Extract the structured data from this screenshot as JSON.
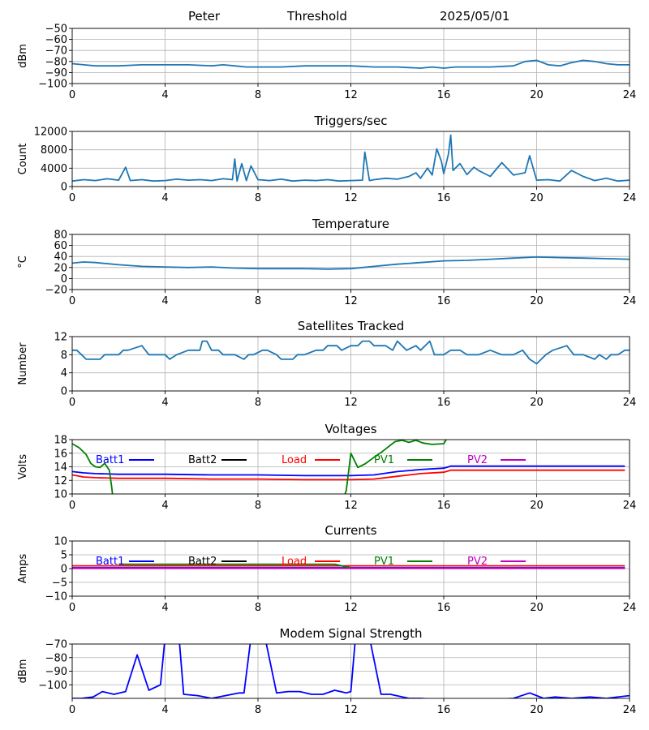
{
  "header": {
    "station": "Peter",
    "mode": "Threshold",
    "date": "2025/05/01"
  },
  "colors": {
    "default_line": "#1f77b4",
    "batt1": "#0000ff",
    "batt2": "#000000",
    "load": "#ff0000",
    "pv1": "#008000",
    "pv2": "#bf00bf",
    "grid": "#b0b0b0"
  },
  "chart_data": [
    {
      "type": "line",
      "title": "",
      "ylabel": "dBm",
      "xlim": [
        0,
        24
      ],
      "ylim": [
        -100,
        -50
      ],
      "xticks": [
        0,
        4,
        8,
        12,
        16,
        20,
        24
      ],
      "yticks": [
        -100,
        -90,
        -80,
        -70,
        -60,
        -50
      ],
      "grid": true,
      "series": [
        {
          "color": "#1f77b4",
          "x": [
            0,
            0.5,
            1,
            2,
            3,
            4,
            5,
            6,
            6.5,
            7,
            7.5,
            8,
            9,
            10,
            11,
            12,
            13,
            14,
            15,
            15.5,
            16,
            16.5,
            17,
            18,
            19,
            19.5,
            20,
            20.5,
            21,
            21.5,
            22,
            22.5,
            23,
            23.5,
            24
          ],
          "y": [
            -82,
            -83,
            -84,
            -84,
            -83,
            -83,
            -83,
            -84,
            -83,
            -84,
            -85,
            -85,
            -85,
            -84,
            -84,
            -84,
            -85,
            -85,
            -86,
            -85,
            -86,
            -85,
            -85,
            -85,
            -84,
            -80,
            -79,
            -83,
            -84,
            -81,
            -79,
            -80,
            -82,
            -83,
            -83
          ]
        }
      ]
    },
    {
      "type": "line",
      "title": "Triggers/sec",
      "ylabel": "Count",
      "xlim": [
        0,
        24
      ],
      "ylim": [
        0,
        12000
      ],
      "xticks": [
        0,
        4,
        8,
        12,
        16,
        20,
        24
      ],
      "yticks": [
        0,
        4000,
        8000,
        12000
      ],
      "grid": true,
      "series": [
        {
          "color": "#1f77b4",
          "x": [
            0,
            0.5,
            1,
            1.5,
            2,
            2.3,
            2.5,
            3,
            3.5,
            4,
            4.5,
            5,
            5.5,
            6,
            6.5,
            6.9,
            7,
            7.1,
            7.3,
            7.5,
            7.7,
            8,
            8.5,
            9,
            9.5,
            10,
            10.5,
            11,
            11.5,
            12,
            12.5,
            12.6,
            12.8,
            13,
            13.5,
            14,
            14.5,
            14.8,
            15,
            15.3,
            15.5,
            15.7,
            15.9,
            16,
            16.2,
            16.3,
            16.4,
            16.7,
            17,
            17.3,
            17.5,
            18,
            18.5,
            19,
            19.5,
            19.7,
            20,
            20.5,
            21,
            21.5,
            22,
            22.5,
            23,
            23.5,
            24
          ],
          "y": [
            1200,
            1500,
            1300,
            1700,
            1400,
            4200,
            1300,
            1500,
            1200,
            1300,
            1600,
            1400,
            1500,
            1300,
            1700,
            1500,
            6000,
            1200,
            5000,
            1300,
            4500,
            1500,
            1300,
            1600,
            1200,
            1400,
            1300,
            1500,
            1200,
            1300,
            1400,
            7500,
            1300,
            1500,
            1800,
            1600,
            2200,
            3000,
            1800,
            4000,
            2500,
            8200,
            5500,
            2800,
            7000,
            11200,
            3500,
            5000,
            2600,
            4200,
            3500,
            2200,
            5200,
            2500,
            3000,
            6700,
            1400,
            1500,
            1200,
            3500,
            2200,
            1300,
            1800,
            1200,
            1400
          ]
        }
      ]
    },
    {
      "type": "line",
      "title": "Temperature",
      "ylabel": "°C",
      "xlim": [
        0,
        24
      ],
      "ylim": [
        -20,
        80
      ],
      "xticks": [
        0,
        4,
        8,
        12,
        16,
        20,
        24
      ],
      "yticks": [
        -20,
        0,
        20,
        40,
        60,
        80
      ],
      "grid": true,
      "series": [
        {
          "color": "#1f77b4",
          "x": [
            0,
            0.5,
            1,
            2,
            3,
            4,
            5,
            6,
            7,
            8,
            9,
            10,
            11,
            12,
            12.5,
            13,
            14,
            15,
            16,
            17,
            18,
            19,
            20,
            21,
            22,
            23,
            24
          ],
          "y": [
            28,
            30,
            29,
            25,
            22,
            21,
            20,
            21,
            19,
            18,
            18,
            18,
            17,
            18,
            20,
            22,
            26,
            29,
            32,
            33,
            35,
            37,
            39,
            38,
            37,
            36,
            35
          ]
        }
      ]
    },
    {
      "type": "line",
      "title": "Satellites Tracked",
      "ylabel": "Number",
      "xlim": [
        0,
        24
      ],
      "ylim": [
        0,
        12
      ],
      "xticks": [
        0,
        4,
        8,
        12,
        16,
        20,
        24
      ],
      "yticks": [
        0,
        4,
        8,
        12
      ],
      "grid": true,
      "series": [
        {
          "color": "#1f77b4",
          "x": [
            0,
            0.2,
            0.4,
            0.6,
            1.2,
            1.4,
            2,
            2.2,
            2.4,
            3,
            3.3,
            3.5,
            4,
            4.2,
            4.5,
            5,
            5.5,
            5.6,
            5.8,
            6,
            6.3,
            6.5,
            7,
            7.4,
            7.6,
            7.8,
            8.2,
            8.4,
            8.8,
            9,
            9.5,
            9.7,
            10,
            10.5,
            10.8,
            11,
            11.4,
            11.6,
            12,
            12.3,
            12.5,
            12.8,
            13,
            13.5,
            13.8,
            14,
            14.4,
            14.8,
            15,
            15.4,
            15.6,
            16,
            16.3,
            16.7,
            17,
            17.5,
            18,
            18.5,
            19,
            19.4,
            19.7,
            20,
            20.2,
            20.4,
            20.7,
            21.3,
            21.6,
            22,
            22.5,
            22.7,
            23,
            23.2,
            23.5,
            23.8,
            24
          ],
          "y": [
            9,
            9,
            8,
            7,
            7,
            8,
            8,
            9,
            9,
            10,
            8,
            8,
            8,
            7,
            8,
            9,
            9,
            11,
            11,
            9,
            9,
            8,
            8,
            7,
            8,
            8,
            9,
            9,
            8,
            7,
            7,
            8,
            8,
            9,
            9,
            10,
            10,
            9,
            10,
            10,
            11,
            11,
            10,
            10,
            9,
            11,
            9,
            10,
            9,
            11,
            8,
            8,
            9,
            9,
            8,
            8,
            9,
            8,
            8,
            9,
            7,
            6,
            7,
            8,
            9,
            10,
            8,
            8,
            7,
            8,
            7,
            8,
            8,
            9,
            9
          ]
        }
      ]
    },
    {
      "type": "line",
      "title": "Voltages",
      "ylabel": "Volts",
      "xlim": [
        0,
        24
      ],
      "ylim": [
        10,
        18
      ],
      "xticks": [
        0,
        4,
        8,
        12,
        16,
        20,
        24
      ],
      "yticks": [
        10,
        12,
        14,
        16,
        18
      ],
      "grid": true,
      "legend": "top",
      "series": [
        {
          "name": "Batt1",
          "color": "#0000ff",
          "x": [
            0,
            0.5,
            1,
            2,
            4,
            6,
            8,
            10,
            12,
            13,
            14,
            15,
            16,
            16.3,
            18,
            20,
            22,
            23.8
          ],
          "y": [
            13.3,
            13.1,
            13.0,
            12.9,
            12.9,
            12.8,
            12.8,
            12.7,
            12.7,
            12.8,
            13.3,
            13.6,
            13.8,
            14.1,
            14.1,
            14.1,
            14.1,
            14.1
          ]
        },
        {
          "name": "Batt2",
          "color": "#000000",
          "x": [],
          "y": []
        },
        {
          "name": "Load",
          "color": "#ff0000",
          "x": [
            0,
            0.5,
            1,
            2,
            4,
            6,
            8,
            10,
            12,
            13,
            14,
            15,
            16,
            16.3,
            18,
            20,
            22,
            23.8
          ],
          "y": [
            12.8,
            12.5,
            12.4,
            12.3,
            12.3,
            12.2,
            12.2,
            12.1,
            12.1,
            12.2,
            12.6,
            13.0,
            13.2,
            13.5,
            13.5,
            13.5,
            13.5,
            13.5
          ]
        },
        {
          "name": "PV1",
          "color": "#008000",
          "x": [
            0,
            0.3,
            0.6,
            0.8,
            1,
            1.2,
            1.4,
            1.6,
            1.7,
            1.75,
            null,
            11.7,
            11.8,
            12,
            12.3,
            12.6,
            13,
            13.3,
            13.6,
            13.9,
            14.2,
            14.5,
            14.8,
            15.1,
            15.5,
            16,
            16.2
          ],
          "y": [
            17.4,
            16.8,
            15.8,
            14.5,
            14.0,
            13.9,
            14.5,
            13.5,
            11.0,
            9.5,
            null,
            9.5,
            10.5,
            16.0,
            13.9,
            14.4,
            15.4,
            16.1,
            16.9,
            17.7,
            17.9,
            17.6,
            17.9,
            17.5,
            17.3,
            17.4,
            18.5
          ]
        },
        {
          "name": "PV2",
          "color": "#bf00bf",
          "x": [],
          "y": []
        }
      ]
    },
    {
      "type": "line",
      "title": "Currents",
      "ylabel": "Amps",
      "xlim": [
        0,
        24
      ],
      "ylim": [
        -10,
        10
      ],
      "xticks": [
        0,
        4,
        8,
        12,
        16,
        20,
        24
      ],
      "yticks": [
        -10,
        -5,
        0,
        5,
        10
      ],
      "grid": true,
      "legend": "top",
      "series": [
        {
          "name": "Batt1",
          "color": "#0000ff",
          "x": [
            0,
            4,
            8,
            12,
            16,
            20,
            23.8
          ],
          "y": [
            0.3,
            0.3,
            0.3,
            0.3,
            0.3,
            0.3,
            0.3
          ]
        },
        {
          "name": "Batt2",
          "color": "#000000",
          "x": [],
          "y": []
        },
        {
          "name": "Load",
          "color": "#ff0000",
          "x": [
            0,
            4,
            8,
            12,
            16,
            20,
            23.8
          ],
          "y": [
            1.0,
            1.0,
            1.0,
            1.0,
            1.0,
            1.0,
            1.0
          ]
        },
        {
          "name": "PV1",
          "color": "#008000",
          "x": [
            2,
            4,
            6,
            8,
            10,
            11.3,
            11.6,
            12
          ],
          "y": [
            1.6,
            1.6,
            1.6,
            1.6,
            1.6,
            1.6,
            1.0,
            0.3
          ]
        },
        {
          "name": "PV2",
          "color": "#bf00bf",
          "x": [
            0,
            4,
            8,
            12,
            16,
            20,
            23.8
          ],
          "y": [
            0.1,
            0.1,
            0.1,
            0.1,
            0.1,
            0.1,
            0.1
          ]
        }
      ]
    },
    {
      "type": "line",
      "title": "Modem Signal Strength",
      "ylabel": "dBm",
      "xlim": [
        0,
        24
      ],
      "ylim": [
        -110,
        -70
      ],
      "xticks": [
        0,
        4,
        8,
        12,
        16,
        20,
        24
      ],
      "yticks": [
        -100,
        -90,
        -80,
        -70
      ],
      "grid": true,
      "series": [
        {
          "color": "#0000ff",
          "x": [
            0,
            0.4,
            0.9,
            1.3,
            1.8,
            2.3,
            2.8,
            3.3,
            3.8,
            4.0,
            4.6,
            4.8,
            5.4,
            6.0,
            6.6,
            7.2,
            7.4,
            7.7,
            8.3,
            8.8,
            9.3,
            9.8,
            10.3,
            10.8,
            11.3,
            11.8,
            12.0,
            12.2,
            12.8,
            13.3,
            13.7,
            14.5,
            15,
            16,
            17,
            18,
            19,
            19.7,
            20,
            20.3,
            20.8,
            21.5,
            22.3,
            23,
            23.5,
            24
          ],
          "y": [
            -110,
            -110,
            -109,
            -105,
            -107,
            -105,
            -78,
            -104,
            -100,
            -65,
            -65,
            -107,
            -108,
            -110,
            -108,
            -106,
            -106,
            -65,
            -65,
            -106,
            -105,
            -105,
            -107,
            -107,
            -104,
            -106,
            -105,
            -65,
            -65,
            -107,
            -107,
            -110,
            -110,
            -111,
            -111,
            -111,
            -110,
            -106,
            -108,
            -110,
            -109,
            -110,
            -109,
            -110,
            -109,
            -108
          ]
        }
      ]
    }
  ]
}
